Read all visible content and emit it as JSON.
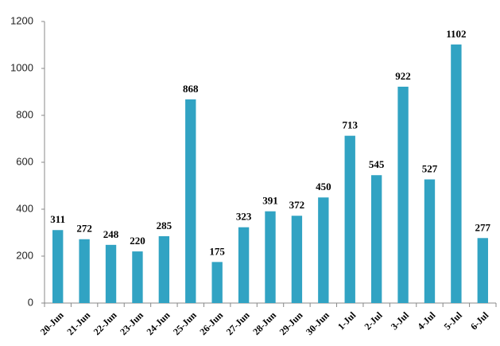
{
  "chart_data": {
    "type": "bar",
    "categories": [
      "20-Jun",
      "21-Jun",
      "22-Jun",
      "23-Jun",
      "24-Jun",
      "25-Jun",
      "26-Jun",
      "27-Jun",
      "28-Jun",
      "29-Jun",
      "30-Jun",
      "1-Jul",
      "2-Jul",
      "3-Jul",
      "4-Jul",
      "5-Jul",
      "6-Jul"
    ],
    "values": [
      311,
      272,
      248,
      220,
      285,
      868,
      175,
      323,
      391,
      372,
      450,
      713,
      545,
      922,
      527,
      1102,
      277
    ],
    "color": "#31a3c3",
    "ylim": [
      0,
      1200
    ],
    "yticks": [
      0,
      200,
      400,
      600,
      800,
      1000,
      1200
    ],
    "grid": false
  }
}
